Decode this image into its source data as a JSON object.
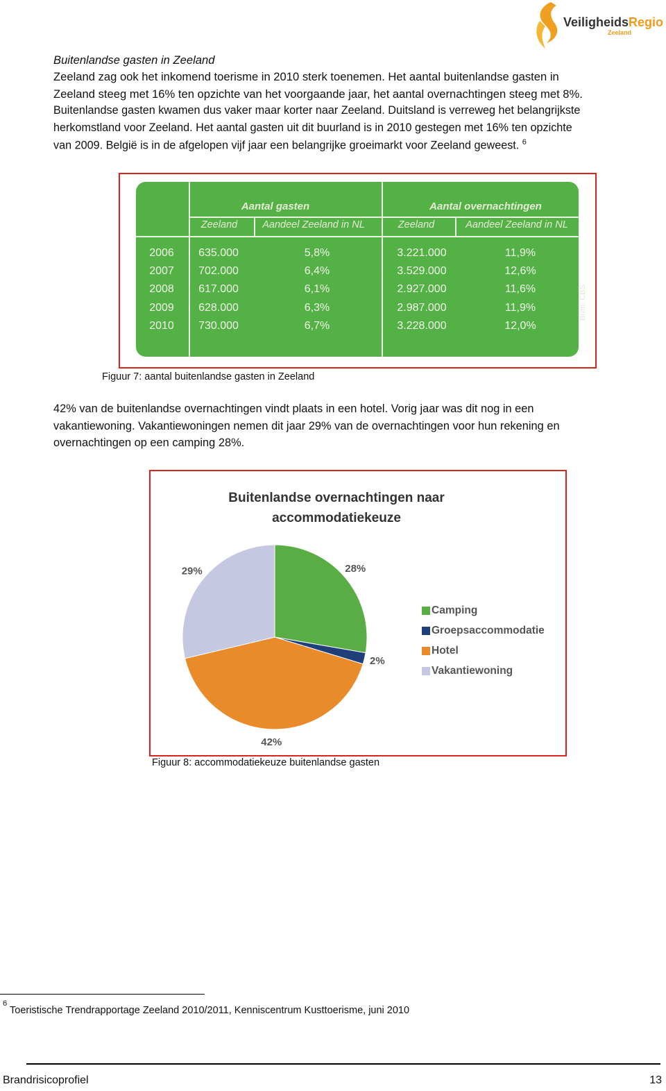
{
  "header": {
    "logo_part1": "Veiligheids",
    "logo_part2": "Regio",
    "logo_sub": "Zeeland"
  },
  "section_title": "Buitenlandse gasten in Zeeland",
  "intro_lines": [
    "Zeeland zag ook het inkomend toerisme in 2010 sterk toenemen. Het aantal buitenlandse gasten in",
    "Zeeland steeg met 16% ten opzichte van het voorgaande jaar, het aantal overnachtingen steeg met 8%.",
    "Buitenlandse gasten kwamen dus vaker maar korter naar Zeeland. Duitsland is verreweg het belangrijkste",
    "herkomstland voor Zeeland. Het aantal gasten uit dit buurland is in 2010 gestegen met 16% ten opzichte",
    "van 2009. België is in de afgelopen vijf jaar een belangrijke groeimarkt voor Zeeland geweest."
  ],
  "intro_footnote_ref": "6",
  "table": {
    "group_headers": [
      "Aantal gasten",
      "Aantal overnachtingen"
    ],
    "column_headers": [
      "Zeeland",
      "Aandeel Zeeland in NL",
      "Zeeland",
      "Aandeel Zeeland in NL"
    ],
    "rows": [
      [
        "2006",
        "635.000",
        "5,8%",
        "3.221.000",
        "11,9%"
      ],
      [
        "2007",
        "702.000",
        "6,4%",
        "3.529.000",
        "12,6%"
      ],
      [
        "2008",
        "617.000",
        "6,1%",
        "2.927.000",
        "11,6%"
      ],
      [
        "2009",
        "628.000",
        "6,3%",
        "2.987.000",
        "11,9%"
      ],
      [
        "2010",
        "730.000",
        "6,7%",
        "3.228.000",
        "12,0%"
      ]
    ],
    "source": "Bron: CBS"
  },
  "figure7_caption": "Figuur 7: aantal buitenlandse gasten in Zeeland",
  "body_lines": [
    "42% van de buitenlandse overnachtingen vindt plaats in een hotel. Vorig jaar was dit nog in een",
    "vakantiewoning. Vakantiewoningen nemen dit jaar 29% van de overnachtingen voor hun rekening en",
    "overnachtingen op een camping 28%."
  ],
  "chart_data": {
    "type": "pie",
    "title": "Buitenlandse overnachtingen naar accommodatiekeuze",
    "categories": [
      "Camping",
      "Groepsaccommodatie",
      "Hotel",
      "Vakantiewoning"
    ],
    "values": [
      28,
      2,
      42,
      29
    ],
    "value_labels": [
      "28%",
      "2%",
      "42%",
      "29%"
    ],
    "colors": [
      "#5aac44",
      "#1f3e7a",
      "#e98a2b",
      "#c5c8e0"
    ],
    "legend": "right"
  },
  "figure8_caption": "Figuur 8: accommodatiekeuze buitenlandse gasten",
  "footnote": {
    "number": "6",
    "text": "Toeristische Trendrapportage Zeeland 2010/2011, Kenniscentrum Kusttoerisme, juni 2010"
  },
  "footer": {
    "title": "Brandrisicoprofiel",
    "page": "13"
  }
}
